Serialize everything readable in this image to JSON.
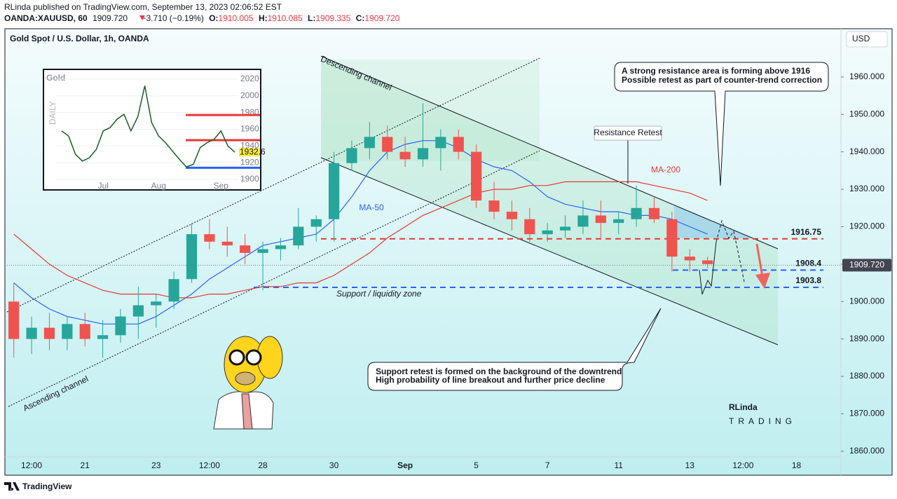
{
  "header": {
    "publisher": "RLinda published on TradingView.com, September 13, 2023 02:06:52 EST",
    "symbol": "OANDA:XAUUSD, 60",
    "price": "1909.720",
    "change": "−3.710 (−0.19%)",
    "open_label": "O:",
    "open": "1910.005",
    "high_label": "H:",
    "high": "1910.085",
    "low_label": "L:",
    "low": "1909.335",
    "close_label": "C:",
    "close": "1909.720"
  },
  "footer": {
    "brand": "TradingView"
  },
  "watermark": {
    "line1": "RLinda",
    "line2": "TRADING"
  },
  "annotations": {
    "descending": "Descending channel",
    "ascending": "Ascending channel",
    "resistance_retest": "Resistance Retest",
    "top_note": [
      "A strong resistance area is forming above 1916",
      "Possible retest as part of counter-trend correction"
    ],
    "bottom_note": [
      "Support retest is formed on the background of the downtrend",
      "High probability of line breakout and further price decline"
    ],
    "support_zone": "Support / liquidity zone"
  },
  "chart_data": [
    {
      "type": "candlestick",
      "title": "Gold Spot / U.S. Dollar, 1h, OANDA",
      "currency": "USD",
      "up_color": "#26a69a",
      "down_color": "#ef5350",
      "categories": [
        null,
        "12:00",
        null,
        null,
        "21",
        null,
        null,
        null,
        "23",
        null,
        null,
        "12:00",
        null,
        null,
        "28",
        null,
        null,
        null,
        "30",
        null,
        null,
        null,
        "Sep",
        null,
        null,
        null,
        "5",
        null,
        null,
        null,
        "7",
        null,
        null,
        null,
        "11",
        null,
        null,
        null,
        "13",
        null,
        null,
        "12:00",
        null,
        null,
        "18",
        null,
        null
      ],
      "candles": {
        "open": [
          1900,
          1890,
          1893,
          1890,
          1894,
          1890,
          1891,
          1896,
          1899,
          1900,
          1906,
          1918,
          1916,
          1915,
          1913,
          1914,
          1915,
          1920,
          1922,
          1937,
          1941,
          1944,
          1940,
          1938,
          1941,
          1944,
          1940,
          1927,
          1924,
          1922,
          1918,
          1919,
          1920,
          1923,
          1921,
          1922,
          1925,
          1922,
          1912,
          1911,
          null,
          null,
          null,
          null,
          null,
          null,
          null
        ],
        "high": [
          1905,
          1896,
          1897,
          1896,
          1897,
          1895,
          1898,
          1904,
          1902,
          1908,
          1921,
          1922,
          1920,
          1918,
          1916,
          1917,
          1925,
          1923,
          1940,
          1943,
          1948,
          1947,
          1944,
          1953,
          1946,
          1946,
          1942,
          1932,
          1927,
          1925,
          1921,
          1923,
          1927,
          1927,
          1924,
          1931,
          1928,
          1924,
          1914,
          1912,
          null,
          null,
          null,
          null,
          null,
          null,
          null
        ],
        "low": [
          1885,
          1886,
          1887,
          1887,
          1888,
          1885,
          1889,
          1890,
          1893,
          1898,
          1905,
          1914,
          1912,
          1910,
          1903,
          1911,
          1914,
          1916,
          1916,
          1935,
          1938,
          1938,
          1936,
          1936,
          1935,
          1938,
          1925,
          1922,
          1919,
          1916,
          1916,
          1917,
          1918,
          1917,
          1918,
          1920,
          1921,
          1908,
          1908,
          1909,
          null,
          null,
          null,
          null,
          null,
          null,
          null
        ],
        "close": [
          1890,
          1893,
          1890,
          1894,
          1890,
          1891,
          1896,
          1899,
          1900,
          1906,
          1918,
          1916,
          1915,
          1913,
          1914,
          1915,
          1920,
          1922,
          1937,
          1941,
          1944,
          1940,
          1938,
          1941,
          1944,
          1940,
          1927,
          1924,
          1922,
          1918,
          1919,
          1920,
          1923,
          1921,
          1922,
          1925,
          1922,
          1912,
          1911,
          1910,
          null,
          null,
          null,
          null,
          null,
          null,
          null
        ]
      },
      "series": [
        {
          "name": "MA-50",
          "color": "#2962ff",
          "values": [
            1905,
            1901,
            1898,
            1896,
            1895,
            1894,
            1894,
            1894,
            1896,
            1899,
            1902,
            1906,
            1909,
            1912,
            1915,
            1916,
            1917,
            1918,
            1922,
            1928,
            1935,
            1940,
            1942,
            1943,
            1943,
            1941,
            1938,
            1936,
            1935,
            1932,
            1928,
            1926,
            1925,
            1924,
            1924,
            1923,
            1923,
            1922,
            1920,
            1918,
            null,
            null,
            null,
            null,
            null,
            null,
            null
          ]
        },
        {
          "name": "MA-200",
          "color": "#e53935",
          "values": [
            1918,
            1914,
            1910,
            1907,
            1905,
            1903,
            1902,
            1902,
            1902,
            1901,
            1901,
            1902,
            1902,
            1903,
            1904,
            1904,
            1905,
            1905,
            1907,
            1910,
            1913,
            1917,
            1920,
            1923,
            1925,
            1927,
            1929,
            1930,
            1930,
            1931,
            1931,
            1932,
            1932,
            1932,
            1932,
            1932,
            1931,
            1930,
            1929,
            1927,
            null,
            null,
            null,
            null,
            null,
            null,
            null
          ]
        }
      ],
      "levels": [
        {
          "value": 1916.75,
          "color": "#e53935"
        },
        {
          "value": 1908.4,
          "color": "#2962ff"
        },
        {
          "value": 1903.8,
          "color": "#2962ff"
        }
      ],
      "last_price": {
        "value": 1909.72,
        "label": "1909.720"
      },
      "ylim": [
        1853.6,
        1972.9
      ],
      "yticks": [
        {
          "value": 1860,
          "label": "1860.000"
        },
        {
          "value": 1870,
          "label": "1870.000"
        },
        {
          "value": 1880,
          "label": "1880.000"
        },
        {
          "value": 1890,
          "label": "1890.000"
        },
        {
          "value": 1900,
          "label": "1900.000"
        },
        {
          "value": 1910,
          "label": "1910.000"
        },
        {
          "value": 1920,
          "label": "1920.000"
        },
        {
          "value": 1930,
          "label": "1930.000"
        },
        {
          "value": 1940,
          "label": "1940.000"
        },
        {
          "value": 1950,
          "label": "1950.000"
        },
        {
          "value": 1960,
          "label": "1960.000"
        }
      ]
    },
    {
      "type": "line",
      "title": "Gold",
      "subtitle": "DAILY",
      "color": "#1b5e20",
      "categories": [
        null,
        null,
        null,
        null,
        null,
        null,
        "Jul",
        null,
        null,
        null,
        null,
        null,
        null,
        null,
        "Aug",
        null,
        null,
        null,
        null,
        null,
        null,
        null,
        null,
        "Sep",
        null,
        null
      ],
      "values": [
        1958,
        1952,
        1930,
        1922,
        1926,
        1936,
        1958,
        1962,
        1972,
        1978,
        1958,
        1975,
        2012,
        1968,
        1952,
        1944,
        1934,
        1924,
        1915,
        1918,
        1938,
        1944,
        1948,
        1958,
        1940,
        1932.6
      ],
      "levels": [
        {
          "value": 1977,
          "color": "#e53935"
        },
        {
          "value": 1947,
          "color": "#e53935"
        },
        {
          "value": 1914,
          "color": "#2962ff"
        }
      ],
      "ylim": [
        1888.3,
        2030.8
      ],
      "yticks": [
        1900,
        1920,
        1940,
        1960,
        1980,
        2000,
        2020
      ]
    }
  ]
}
